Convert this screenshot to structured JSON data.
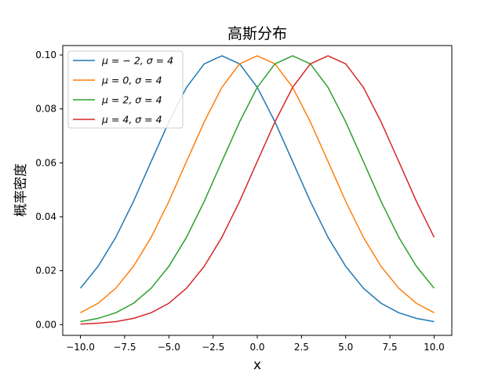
{
  "chart_data": {
    "type": "line",
    "title": "高斯分布",
    "xlabel": "x",
    "ylabel": "概率密度",
    "xlim": [
      -11,
      11
    ],
    "ylim": [
      -0.004,
      0.1035
    ],
    "grid": false,
    "legend_position": "top-left",
    "x_ticks": [
      "−10.0",
      "−7.5",
      "−5.0",
      "−2.5",
      "0.0",
      "2.5",
      "5.0",
      "7.5",
      "10.0"
    ],
    "x_tick_values": [
      -10,
      -7.5,
      -5,
      -2.5,
      0,
      2.5,
      5,
      7.5,
      10
    ],
    "y_ticks": [
      "0.00",
      "0.02",
      "0.04",
      "0.06",
      "0.08",
      "0.10"
    ],
    "y_tick_values": [
      0,
      0.02,
      0.04,
      0.06,
      0.08,
      0.1
    ],
    "x": [
      -10,
      -9,
      -8,
      -7,
      -6,
      -5,
      -4,
      -3,
      -2,
      -1,
      0,
      1,
      2,
      3,
      4,
      5,
      6,
      7,
      8,
      9,
      10
    ],
    "series": [
      {
        "name": "μ = − 2, σ = 4",
        "color": "#1f77b4",
        "values": [
          0.0135,
          0.0216,
          0.0324,
          0.0457,
          0.0605,
          0.0752,
          0.088,
          0.0967,
          0.0997,
          0.0967,
          0.088,
          0.0752,
          0.0605,
          0.0457,
          0.0324,
          0.0216,
          0.0135,
          0.0079,
          0.0044,
          0.0023,
          0.0011
        ]
      },
      {
        "name": "μ = 0, σ = 4",
        "color": "#ff7f0e",
        "values": [
          0.0044,
          0.0079,
          0.0135,
          0.0216,
          0.0324,
          0.0457,
          0.0605,
          0.0752,
          0.088,
          0.0967,
          0.0997,
          0.0967,
          0.088,
          0.0752,
          0.0605,
          0.0457,
          0.0324,
          0.0216,
          0.0135,
          0.0079,
          0.0044
        ]
      },
      {
        "name": "μ = 2, σ = 4",
        "color": "#2ca02c",
        "values": [
          0.0011,
          0.0023,
          0.0044,
          0.0079,
          0.0135,
          0.0216,
          0.0324,
          0.0457,
          0.0605,
          0.0752,
          0.088,
          0.0967,
          0.0997,
          0.0967,
          0.088,
          0.0752,
          0.0605,
          0.0457,
          0.0324,
          0.0216,
          0.0135
        ]
      },
      {
        "name": "μ = 4, σ = 4",
        "color": "#d62728",
        "values": [
          0.0002,
          0.0005,
          0.0011,
          0.0023,
          0.0044,
          0.0079,
          0.0135,
          0.0216,
          0.0324,
          0.0457,
          0.0605,
          0.0752,
          0.088,
          0.0967,
          0.0997,
          0.0967,
          0.088,
          0.0752,
          0.0605,
          0.0457,
          0.0324
        ]
      }
    ]
  }
}
